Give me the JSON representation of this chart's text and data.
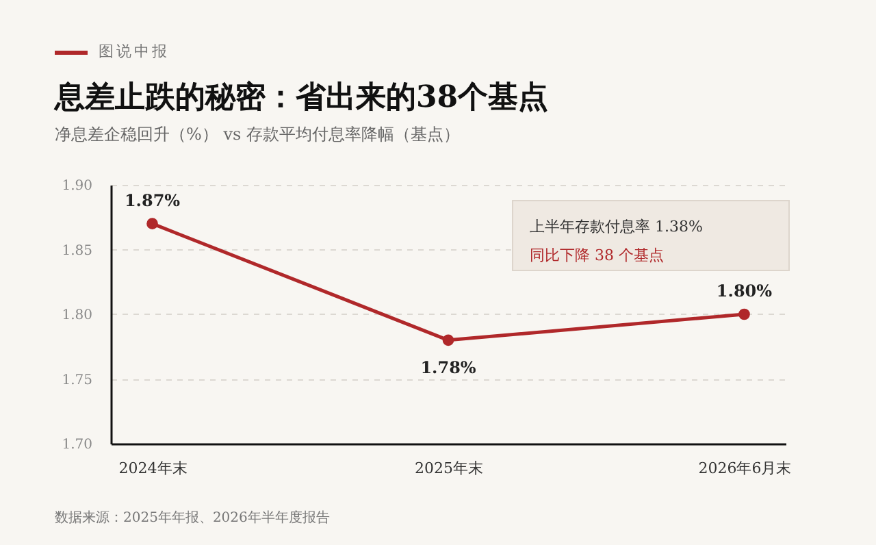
{
  "chart_data": {
    "type": "line",
    "title": "息差止跌的秘密：省出来的38个基点",
    "subtitle": "净息差企稳回升（%） vs 存款平均付息率降幅（基点）",
    "categories": [
      "2024年末",
      "2025年末",
      "2026年6月末"
    ],
    "series": [
      {
        "color": "#b0282a",
        "values": [
          1.87,
          1.78,
          1.8
        ],
        "value_labels": [
          "1.87%",
          "1.78%",
          "1.80%"
        ]
      }
    ],
    "ylim": [
      1.7,
      1.9
    ],
    "yticks": [
      {
        "value": 1.7,
        "label": "1.70"
      },
      {
        "value": 1.75,
        "label": "1.75"
      },
      {
        "value": 1.8,
        "label": "1.80"
      },
      {
        "value": 1.85,
        "label": "1.85"
      },
      {
        "value": 1.9,
        "label": "1.90"
      }
    ],
    "grid": "y",
    "marker": "circle",
    "line_style": "solid",
    "annotations": [
      "图说中报",
      "上半年存款付息率 1.38%",
      "同比下降 38 个基点",
      "数据来源：2025年年报、2026年半年度报告"
    ]
  }
}
